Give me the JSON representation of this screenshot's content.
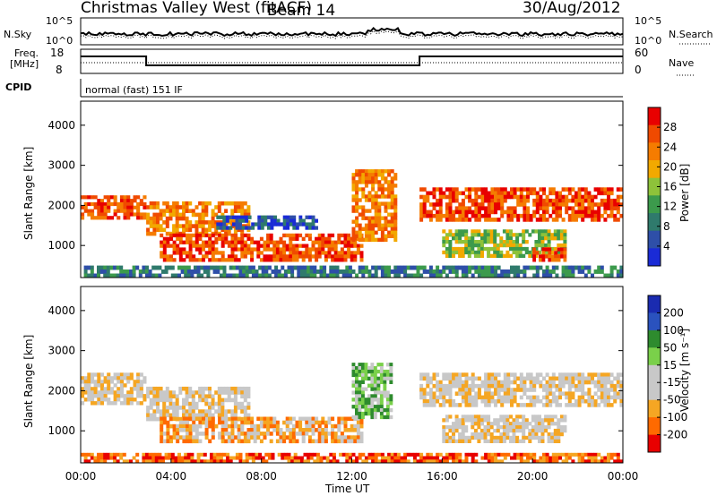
{
  "header": {
    "station": "Christmas Valley West (fitACF)",
    "beam": "Beam 14",
    "date": "30/Aug/2012"
  },
  "noise_panel": {
    "left_label": "N.Sky",
    "right_label": "N.Search",
    "tick_top": "10^5",
    "tick_bottom": "10^0"
  },
  "freq_panel": {
    "left_label_1": "Freq.",
    "left_label_2": "[MHz]",
    "right_label": "Nave",
    "left_ticks": [
      "18",
      "8"
    ],
    "right_ticks": [
      "60",
      "0"
    ]
  },
  "cpid_panel": {
    "label": "CPID",
    "program": "normal (fast) 151 IF"
  },
  "colors": {
    "power": [
      "#1a2bd6",
      "#2e4fa8",
      "#2f7a6c",
      "#3c9a4c",
      "#8ec23a",
      "#f2a900",
      "#f57c00",
      "#f04a00",
      "#e80000"
    ],
    "velocity": [
      "#e80000",
      "#ff6a00",
      "#f5a623",
      "#c8c8c8",
      "#c8c8c8",
      "#7ad04a",
      "#2e8b2e",
      "#2a52be",
      "#1a2bb0"
    ]
  },
  "chart_data": [
    {
      "type": "heatmap",
      "name": "power",
      "ylabel": "Slant Range [km]",
      "ylim": [
        200,
        4600
      ],
      "yticks": [
        1000,
        2000,
        3000,
        4000
      ],
      "colorbar": {
        "label": "Power [dB]",
        "ticks": [
          "4",
          "8",
          "12",
          "16",
          "20",
          "24",
          "28"
        ]
      },
      "echo_regions": [
        {
          "t0": 0.0,
          "t1": 2.9,
          "r0": 1650,
          "r1": 2250,
          "level": 7
        },
        {
          "t0": 2.9,
          "t1": 7.5,
          "r0": 1250,
          "r1": 2100,
          "level": 6
        },
        {
          "t0": 3.5,
          "t1": 12.5,
          "r0": 600,
          "r1": 1300,
          "level": 7
        },
        {
          "t0": 6.0,
          "t1": 10.5,
          "r0": 1400,
          "r1": 1750,
          "level": 1
        },
        {
          "t0": 12.0,
          "t1": 14.0,
          "r0": 1100,
          "r1": 2900,
          "level": 6
        },
        {
          "t0": 15.0,
          "t1": 24.0,
          "r0": 1600,
          "r1": 2450,
          "level": 7
        },
        {
          "t0": 16.0,
          "t1": 21.5,
          "r0": 700,
          "r1": 1400,
          "level": 4
        },
        {
          "t0": 20.0,
          "t1": 21.5,
          "r0": 600,
          "r1": 950,
          "level": 7
        },
        {
          "t0": 0.0,
          "t1": 24.0,
          "r0": 200,
          "r1": 500,
          "level": 2
        }
      ]
    },
    {
      "type": "heatmap",
      "name": "velocity",
      "xlabel": "Time UT",
      "ylabel": "Slant Range [km]",
      "ylim": [
        200,
        4600
      ],
      "yticks": [
        1000,
        2000,
        3000,
        4000
      ],
      "xticks": [
        "00:00",
        "04:00",
        "08:00",
        "12:00",
        "16:00",
        "20:00",
        "00:00"
      ],
      "xlim_hours": [
        0,
        24
      ],
      "colorbar": {
        "label": "Velocity [m s⁻¹]",
        "ticks": [
          "200",
          "100",
          "50",
          "15",
          "-15",
          "-50",
          "-100",
          "-200"
        ]
      },
      "echo_regions": [
        {
          "t0": 0.0,
          "t1": 2.9,
          "r0": 1650,
          "r1": 2450,
          "level": 3
        },
        {
          "t0": 2.9,
          "t1": 7.5,
          "r0": 1250,
          "r1": 2100,
          "level": 3
        },
        {
          "t0": 3.5,
          "t1": 12.5,
          "r0": 700,
          "r1": 1350,
          "level": 2
        },
        {
          "t0": 12.0,
          "t1": 13.8,
          "r0": 1300,
          "r1": 2700,
          "level": 5
        },
        {
          "t0": 15.0,
          "t1": 24.0,
          "r0": 1600,
          "r1": 2450,
          "level": 3
        },
        {
          "t0": 16.0,
          "t1": 21.5,
          "r0": 700,
          "r1": 1400,
          "level": 3
        },
        {
          "t0": 0.0,
          "t1": 24.0,
          "r0": 200,
          "r1": 450,
          "level": 1
        }
      ]
    }
  ]
}
